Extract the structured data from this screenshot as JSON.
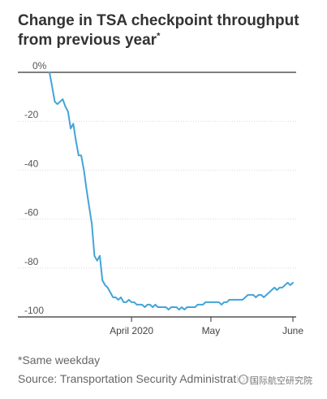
{
  "chart_data": {
    "type": "line",
    "title": "Change in TSA checkpoint throughput from previous year",
    "title_mark": "*",
    "footnote": "*Same weekday",
    "source": "Source: Transportation Security Administration",
    "watermark": "国际航空研究院",
    "ylim": [
      -100,
      0
    ],
    "yticks": [
      0,
      -20,
      -40,
      -60,
      -80,
      -100
    ],
    "ytick_labels": [
      "0%",
      "-20",
      "-40",
      "-60",
      "-80",
      "-100"
    ],
    "xticks": [
      {
        "date": "2020-04-01",
        "label": "April 2020"
      },
      {
        "date": "2020-05-01",
        "label": "May"
      },
      {
        "date": "2020-06-01",
        "label": "June"
      }
    ],
    "grid": true,
    "line_color": "#43a4d8",
    "series": [
      {
        "x": [
          "2020-03-01",
          "2020-03-02",
          "2020-03-03",
          "2020-03-04",
          "2020-03-05",
          "2020-03-06",
          "2020-03-07",
          "2020-03-08",
          "2020-03-09",
          "2020-03-10",
          "2020-03-11",
          "2020-03-12",
          "2020-03-13",
          "2020-03-14",
          "2020-03-15",
          "2020-03-16",
          "2020-03-17",
          "2020-03-18",
          "2020-03-19",
          "2020-03-20",
          "2020-03-21",
          "2020-03-22",
          "2020-03-23",
          "2020-03-24",
          "2020-03-25",
          "2020-03-26",
          "2020-03-27",
          "2020-03-28",
          "2020-03-29",
          "2020-03-30",
          "2020-03-31",
          "2020-04-01",
          "2020-04-02",
          "2020-04-03",
          "2020-04-04",
          "2020-04-05",
          "2020-04-06",
          "2020-04-07",
          "2020-04-08",
          "2020-04-09",
          "2020-04-10",
          "2020-04-11",
          "2020-04-12",
          "2020-04-13",
          "2020-04-14",
          "2020-04-15",
          "2020-04-16",
          "2020-04-17",
          "2020-04-18",
          "2020-04-19",
          "2020-04-20",
          "2020-04-21",
          "2020-04-22",
          "2020-04-23",
          "2020-04-24",
          "2020-04-25",
          "2020-04-26",
          "2020-04-27",
          "2020-04-28",
          "2020-04-29",
          "2020-04-30",
          "2020-05-01",
          "2020-05-02",
          "2020-05-03",
          "2020-05-04",
          "2020-05-05",
          "2020-05-06",
          "2020-05-07",
          "2020-05-08",
          "2020-05-09",
          "2020-05-10",
          "2020-05-11",
          "2020-05-12",
          "2020-05-13",
          "2020-05-14",
          "2020-05-15",
          "2020-05-16",
          "2020-05-17",
          "2020-05-18",
          "2020-05-19",
          "2020-05-20",
          "2020-05-21",
          "2020-05-22",
          "2020-05-23",
          "2020-05-24",
          "2020-05-25",
          "2020-05-26",
          "2020-05-27",
          "2020-05-28",
          "2020-05-29",
          "2020-05-30",
          "2020-05-31",
          "2020-06-01"
        ],
        "y": [
          0,
          -6,
          -12,
          -13,
          -12,
          -11,
          -14,
          -16,
          -23,
          -21,
          -28,
          -34,
          -34,
          -40,
          -48,
          -55,
          -62,
          -75,
          -77,
          -75,
          -85,
          -87,
          -88,
          -90,
          -92,
          -92,
          -93,
          -92,
          -94,
          -94,
          -93,
          -94,
          -94,
          -95,
          -95,
          -95,
          -96,
          -95,
          -95,
          -96,
          -95,
          -96,
          -96,
          -96,
          -96,
          -97,
          -96,
          -96,
          -96,
          -97,
          -96,
          -97,
          -96,
          -96,
          -96,
          -96,
          -95,
          -95,
          -95,
          -94,
          -94,
          -94,
          -94,
          -94,
          -94,
          -95,
          -94,
          -94,
          -93,
          -93,
          -93,
          -93,
          -93,
          -93,
          -92,
          -91,
          -91,
          -91,
          -92,
          -91,
          -91,
          -92,
          -91,
          -90,
          -89,
          -88,
          -89,
          -88,
          -88,
          -87,
          -86,
          -87,
          -86
        ]
      }
    ]
  }
}
